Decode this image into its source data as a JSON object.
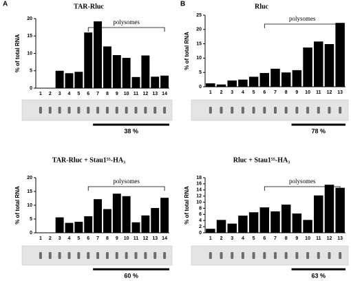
{
  "panel_labels": [
    "A",
    "B"
  ],
  "chart_data": [
    {
      "type": "bar",
      "title": "TAR-Rluc",
      "ylabel": "% of total RNA",
      "annotation": "polysomes",
      "percent_label": "38 %",
      "categories": [
        "1",
        "2",
        "3",
        "4",
        "5",
        "6",
        "7",
        "8",
        "9",
        "10",
        "11",
        "12",
        "13",
        "14"
      ],
      "values": [
        0,
        0,
        5,
        4.3,
        4.7,
        16,
        19.2,
        12,
        9.5,
        8.7,
        3.2,
        9.4,
        3.3,
        3.6
      ],
      "color": "#000000",
      "ylim": [
        0,
        20
      ],
      "yticks": [
        0,
        5,
        10,
        15,
        20
      ]
    },
    {
      "type": "bar",
      "title": "Rluc",
      "ylabel": "% of total RNA",
      "annotation": "polysomes",
      "percent_label": "78 %",
      "categories": [
        "1",
        "2",
        "3",
        "4",
        "5",
        "6",
        "7",
        "8",
        "9",
        "10",
        "11",
        "12",
        "13"
      ],
      "values": [
        1.2,
        0.8,
        2.2,
        2.5,
        3.5,
        4.8,
        6.3,
        5,
        5.8,
        13.7,
        15.8,
        14.9,
        22.3
      ],
      "color": "#000000",
      "ylim": [
        0,
        25
      ],
      "yticks": [
        0,
        5,
        10,
        15,
        20,
        25
      ]
    },
    {
      "type": "bar",
      "title": "TAR-Rluc + Stau1⁵⁵-HA₃",
      "ylabel": "% of total RNA",
      "annotation": "polysomes",
      "percent_label": "60 %",
      "categories": [
        "1",
        "2",
        "3",
        "4",
        "5",
        "6",
        "7",
        "8",
        "9",
        "10",
        "11",
        "12",
        "13",
        "14"
      ],
      "values": [
        0,
        0,
        5.6,
        3.6,
        4,
        6,
        12.2,
        8.6,
        14.2,
        13.3,
        3.8,
        6.3,
        9,
        12.7
      ],
      "color": "#000000",
      "ylim": [
        0,
        20
      ],
      "yticks": [
        0,
        5,
        10,
        15,
        20
      ]
    },
    {
      "type": "bar",
      "title": "Rluc + Stau1⁵⁵-HA₃",
      "ylabel": "% of total RNA",
      "annotation": "polysomes",
      "percent_label": "63 %",
      "categories": [
        "1",
        "2",
        "3",
        "4",
        "5",
        "6",
        "7",
        "8",
        "9",
        "10",
        "11",
        "12",
        "13"
      ],
      "values": [
        1.3,
        4.2,
        3,
        5.6,
        6.7,
        8.3,
        7,
        9.2,
        6.3,
        4.2,
        12.2,
        15.7,
        14.7
      ],
      "color": "#000000",
      "ylim": [
        0,
        18
      ],
      "yticks": [
        0,
        2,
        4,
        6,
        8,
        10,
        12,
        14,
        16,
        18
      ]
    }
  ]
}
